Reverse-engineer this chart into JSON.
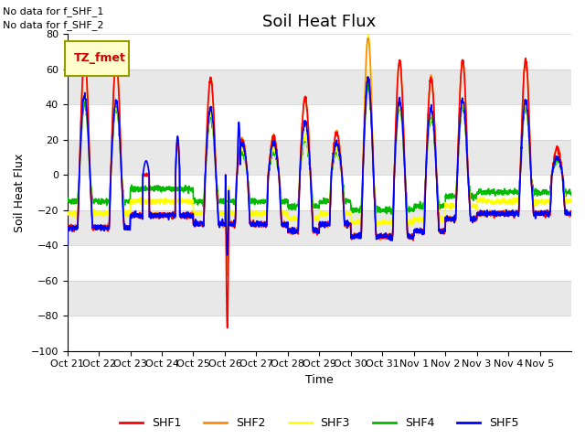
{
  "title": "Soil Heat Flux",
  "ylabel": "Soil Heat Flux",
  "xlabel": "Time",
  "ylim": [
    -100,
    80
  ],
  "yticks": [
    -100,
    -80,
    -60,
    -40,
    -20,
    0,
    20,
    40,
    60,
    80
  ],
  "xtick_labels": [
    "Oct 21",
    "Oct 22",
    "Oct 23",
    "Oct 24",
    "Oct 25",
    "Oct 26",
    "Oct 27",
    "Oct 28",
    "Oct 29",
    "Oct 30",
    "Oct 31",
    "Nov 1",
    "Nov 2",
    "Nov 3",
    "Nov 4",
    "Nov 5"
  ],
  "colors": {
    "SHF1": "#ff0000",
    "SHF2": "#ff8c00",
    "SHF3": "#ffff00",
    "SHF4": "#00bb00",
    "SHF5": "#0000ff"
  },
  "legend_box_label": "TZ_fmet",
  "legend_box_bg": "#ffffcc",
  "legend_box_border": "#999900",
  "no_data_texts": [
    "No data for f_SHF_1",
    "No data for f_SHF_2"
  ],
  "bg_color": "#e8e8e8",
  "alt_band_color": "#ffffff",
  "title_fontsize": 13,
  "axis_label_fontsize": 9,
  "tick_fontsize": 8
}
